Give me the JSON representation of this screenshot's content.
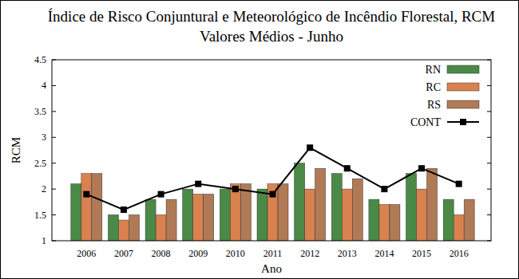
{
  "chart_data": {
    "type": "bar",
    "title": "Índice de Risco Conjuntural e Meteorológico de Incêndio Florestal,  RCM",
    "subtitle": "Valores Médios - Junho",
    "x_label": "Ano",
    "y_label": "RCM",
    "categories": [
      "2006",
      "2007",
      "2008",
      "2009",
      "2010",
      "2011",
      "2012",
      "2013",
      "2014",
      "2015",
      "2016"
    ],
    "series": [
      {
        "name": "RN",
        "type": "bar",
        "color": "#4a8a46",
        "values": [
          2.1,
          1.5,
          1.8,
          2.0,
          2.0,
          2.0,
          2.5,
          2.3,
          1.8,
          2.3,
          1.8
        ]
      },
      {
        "name": "RC",
        "type": "bar",
        "color": "#d9824f",
        "values": [
          2.3,
          1.4,
          1.5,
          1.9,
          2.1,
          2.1,
          2.0,
          2.0,
          1.7,
          2.0,
          1.5
        ]
      },
      {
        "name": "RS",
        "type": "bar",
        "color": "#b07a56",
        "values": [
          2.3,
          1.5,
          1.8,
          1.9,
          2.1,
          2.1,
          2.4,
          2.2,
          1.7,
          2.4,
          1.8
        ]
      },
      {
        "name": "CONT",
        "type": "line",
        "color": "#000000",
        "marker": "square",
        "line_style": "solid",
        "values": [
          1.9,
          1.6,
          1.9,
          2.1,
          2.0,
          1.9,
          2.8,
          2.4,
          2.0,
          2.4,
          2.1
        ]
      }
    ],
    "ylim": [
      1,
      4.5
    ],
    "yticks": [
      1,
      1.5,
      2,
      2.5,
      3,
      3.5,
      4,
      4.5
    ],
    "grid": false,
    "legend": "upper right"
  }
}
